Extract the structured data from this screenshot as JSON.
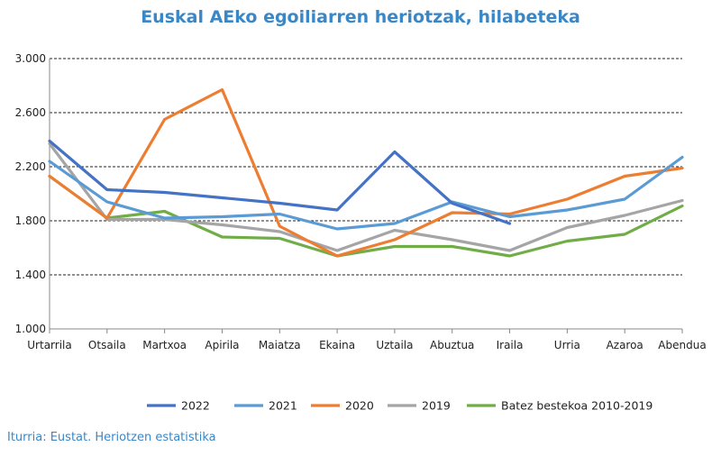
{
  "chart_data": {
    "type": "line",
    "title": "Euskal AEko egoiliarren heriotzak, hilabeteka",
    "source": "Iturria: Eustat. Heriotzen estatistika",
    "categories": [
      "Urtarrila",
      "Otsaila",
      "Martxoa",
      "Apirila",
      "Maiatza",
      "Ekaina",
      "Uztaila",
      "Abuztua",
      "Iraila",
      "Urria",
      "Azaroa",
      "Abendua"
    ],
    "ylim": [
      1000,
      3000
    ],
    "yticks": [
      1000,
      1400,
      1800,
      2200,
      2600,
      3000
    ],
    "ytick_labels": [
      "1.000",
      "1.400",
      "1.800",
      "2.200",
      "2.600",
      "3.000"
    ],
    "grid": true,
    "legend_position": "bottom",
    "series": [
      {
        "name": "2022",
        "color": "#4472c4",
        "values": [
          2390,
          2030,
          2010,
          1970,
          1930,
          1880,
          2310,
          1930,
          1780,
          null,
          null,
          null
        ]
      },
      {
        "name": "2021",
        "color": "#5b9bd5",
        "values": [
          2240,
          1940,
          1820,
          1830,
          1850,
          1740,
          1780,
          1940,
          1830,
          1880,
          1960,
          2270
        ]
      },
      {
        "name": "2020",
        "color": "#ed7d31",
        "values": [
          2130,
          1820,
          2550,
          2770,
          1760,
          1540,
          1660,
          1860,
          1850,
          1960,
          2130,
          2190
        ]
      },
      {
        "name": "2019",
        "color": "#a5a5a5",
        "values": [
          2370,
          1810,
          1810,
          1770,
          1720,
          1580,
          1730,
          1660,
          1580,
          1750,
          1840,
          1950
        ]
      },
      {
        "name": "Batez bestekoa 2010-2019",
        "color": "#70ad47",
        "values": [
          2130,
          1820,
          1870,
          1680,
          1670,
          1540,
          1610,
          1610,
          1540,
          1650,
          1700,
          1910
        ]
      }
    ]
  }
}
